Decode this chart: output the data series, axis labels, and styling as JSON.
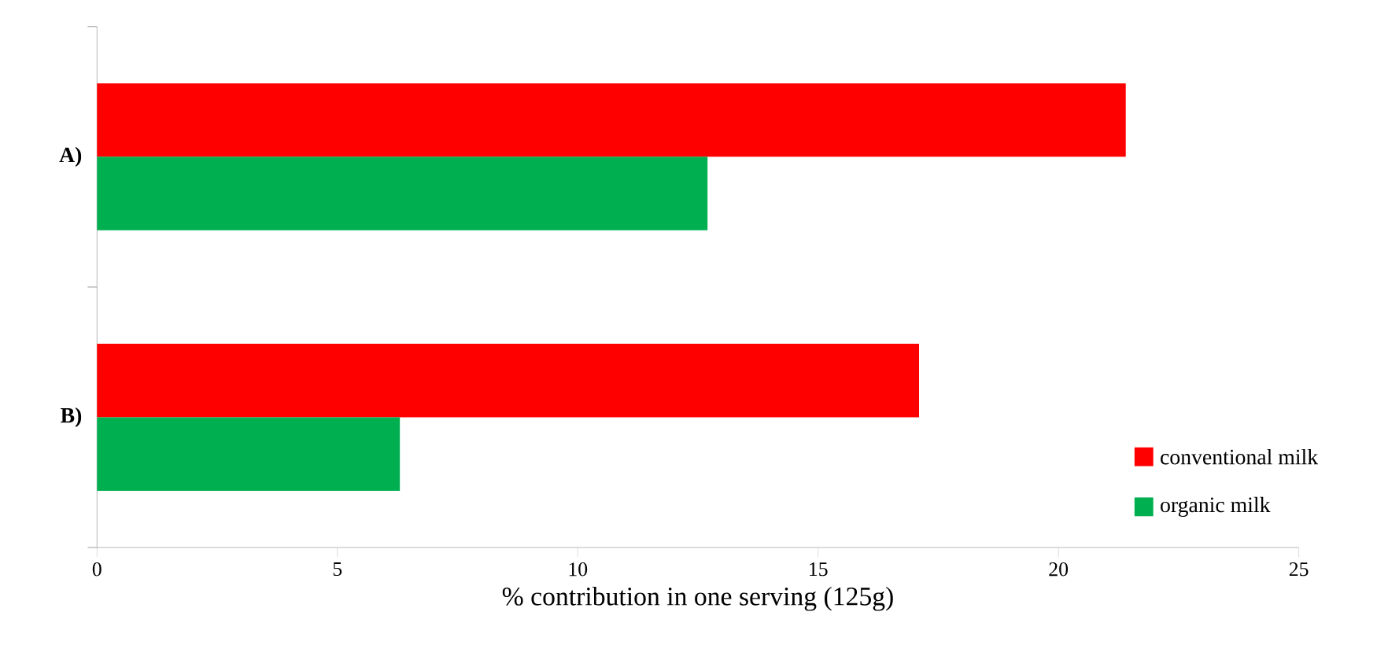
{
  "chart_data": {
    "type": "bar",
    "orientation": "horizontal",
    "xlabel": "% contribution in one serving (125g)",
    "categories": [
      "A)",
      "B)"
    ],
    "series": [
      {
        "name": "conventional milk",
        "color": "#ff0000",
        "values": [
          21.4,
          17.1
        ]
      },
      {
        "name": "organic milk",
        "color": "#00b050",
        "values": [
          12.7,
          6.3
        ]
      }
    ],
    "xlim": [
      0,
      25
    ],
    "xticks": [
      0,
      5,
      10,
      15,
      20,
      25
    ],
    "grid": false,
    "legend": "bottom right"
  }
}
